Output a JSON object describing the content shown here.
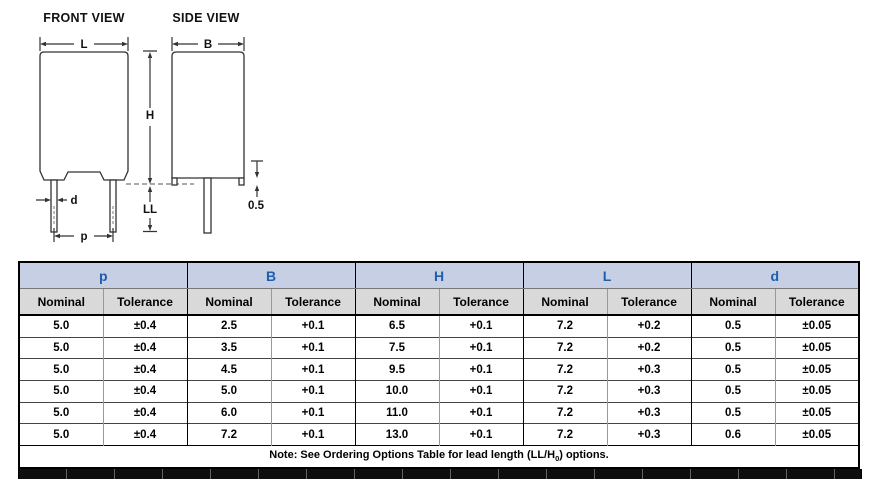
{
  "drawing": {
    "front_title": "FRONT VIEW",
    "side_title": "SIDE VIEW",
    "labels": {
      "length": "L",
      "width": "B",
      "height": "H",
      "lead_length": "LL",
      "lead_diameter": "d",
      "pitch": "p",
      "standoff": "0.5"
    }
  },
  "table": {
    "groups": [
      "p",
      "B",
      "H",
      "L",
      "d"
    ],
    "subheaders": [
      "Nominal",
      "Tolerance"
    ],
    "rows": [
      [
        "5.0",
        "±0.4",
        "2.5",
        "+0.1",
        "6.5",
        "+0.1",
        "7.2",
        "+0.2",
        "0.5",
        "±0.05"
      ],
      [
        "5.0",
        "±0.4",
        "3.5",
        "+0.1",
        "7.5",
        "+0.1",
        "7.2",
        "+0.2",
        "0.5",
        "±0.05"
      ],
      [
        "5.0",
        "±0.4",
        "4.5",
        "+0.1",
        "9.5",
        "+0.1",
        "7.2",
        "+0.3",
        "0.5",
        "±0.05"
      ],
      [
        "5.0",
        "±0.4",
        "5.0",
        "+0.1",
        "10.0",
        "+0.1",
        "7.2",
        "+0.3",
        "0.5",
        "±0.05"
      ],
      [
        "5.0",
        "±0.4",
        "6.0",
        "+0.1",
        "11.0",
        "+0.1",
        "7.2",
        "+0.3",
        "0.5",
        "±0.05"
      ],
      [
        "5.0",
        "±0.4",
        "7.2",
        "+0.1",
        "13.0",
        "+0.1",
        "7.2",
        "+0.3",
        "0.6",
        "±0.05"
      ]
    ],
    "note": {
      "prefix": "Note: See Ordering Options Table for lead length (LL/H",
      "subscript": "0",
      "suffix": ") options."
    }
  },
  "colors": {
    "group_header_bg": "#c7cfe4",
    "group_header_text": "#1d5fae",
    "subheader_bg": "#d9d9d9",
    "drawing_line": "#333333",
    "table_border": "#000000"
  }
}
